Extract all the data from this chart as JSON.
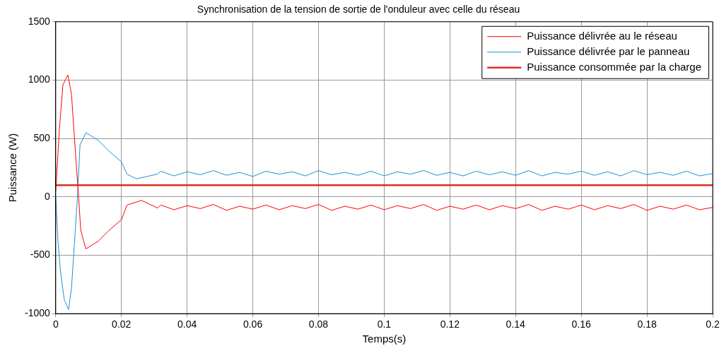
{
  "chart_data": {
    "type": "line",
    "title": "Synchronisation de la tension de sortie de l'onduleur avec celle du réseau",
    "xlabel": "Temps(s)",
    "ylabel": "Puissance (W)",
    "xlim": [
      0,
      0.2
    ],
    "xticks": [
      0,
      0.02,
      0.04,
      0.06,
      0.08,
      0.1,
      0.12,
      0.14,
      0.16,
      0.18,
      0.2
    ],
    "ylim": [
      -1000,
      1500
    ],
    "yticks": [
      -1000,
      -500,
      0,
      500,
      1000,
      1500
    ],
    "grid": true,
    "legend": "top right",
    "marker": "none",
    "line_style": "solid",
    "series": [
      {
        "name": "Puissance délivrée au le réseau",
        "color": "#ff0000",
        "x": [
          0,
          0.0011,
          0.0022,
          0.0037,
          0.0048,
          0.0055,
          0.0063,
          0.007,
          0.0076,
          0.0085,
          0.0092,
          0.0129,
          0.0165,
          0.02,
          0.0217,
          0.0261,
          0.031,
          0.032,
          0.036,
          0.04,
          0.044,
          0.048,
          0.052,
          0.056,
          0.06,
          0.064,
          0.068,
          0.072,
          0.076,
          0.08,
          0.084,
          0.088,
          0.092,
          0.096,
          0.1,
          0.104,
          0.108,
          0.112,
          0.116,
          0.12,
          0.124,
          0.128,
          0.132,
          0.136,
          0.14,
          0.144,
          0.148,
          0.152,
          0.156,
          0.16,
          0.164,
          0.168,
          0.172,
          0.176,
          0.18,
          0.184,
          0.188,
          0.192,
          0.196,
          0.2
        ],
        "values": [
          50,
          570,
          960,
          1045,
          880,
          590,
          260,
          -10,
          -280,
          -380,
          -445,
          -380,
          -280,
          -195,
          -70,
          -30,
          -95,
          -70,
          -110,
          -75,
          -100,
          -65,
          -115,
          -80,
          -105,
          -70,
          -110,
          -75,
          -100,
          -65,
          -115,
          -80,
          -105,
          -70,
          -110,
          -75,
          -100,
          -65,
          -115,
          -80,
          -105,
          -70,
          -110,
          -75,
          -100,
          -65,
          -115,
          -80,
          -105,
          -70,
          -110,
          -75,
          -100,
          -65,
          -115,
          -80,
          -105,
          -70,
          -110,
          -90
        ]
      },
      {
        "name": "Puissance délivrée par le panneau",
        "color": "#1f8fd6",
        "x": [
          0,
          0.0007,
          0.0015,
          0.0026,
          0.0039,
          0.0048,
          0.0055,
          0.0066,
          0.0074,
          0.0092,
          0.0129,
          0.0165,
          0.02,
          0.0217,
          0.0246,
          0.031,
          0.032,
          0.036,
          0.04,
          0.044,
          0.048,
          0.052,
          0.056,
          0.06,
          0.064,
          0.068,
          0.072,
          0.076,
          0.08,
          0.084,
          0.088,
          0.092,
          0.096,
          0.1,
          0.104,
          0.108,
          0.112,
          0.116,
          0.12,
          0.124,
          0.128,
          0.132,
          0.136,
          0.14,
          0.144,
          0.148,
          0.152,
          0.156,
          0.16,
          0.164,
          0.168,
          0.172,
          0.176,
          0.18,
          0.184,
          0.188,
          0.192,
          0.196,
          0.2
        ],
        "values": [
          0,
          -385,
          -650,
          -880,
          -965,
          -780,
          -485,
          -10,
          445,
          550,
          485,
          385,
          300,
          195,
          155,
          195,
          220,
          180,
          215,
          190,
          225,
          185,
          210,
          175,
          220,
          195,
          215,
          180,
          225,
          190,
          210,
          185,
          220,
          180,
          215,
          195,
          225,
          185,
          210,
          180,
          220,
          190,
          215,
          185,
          225,
          180,
          210,
          195,
          220,
          185,
          215,
          180,
          225,
          190,
          210,
          185,
          220,
          180,
          200
        ]
      },
      {
        "name": "Puissance consommée par la charge",
        "color": "#e0301e",
        "x": [
          0,
          0.2
        ],
        "values": [
          100,
          100
        ]
      }
    ]
  }
}
